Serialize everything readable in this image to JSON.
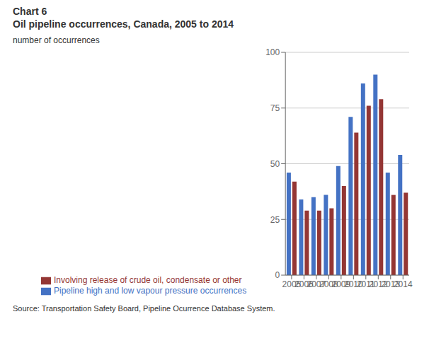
{
  "chart_data": {
    "type": "bar",
    "title": "Chart 6",
    "subtitle": "Oil pipeline occurrences, Canada, 2005 to 2014",
    "ylabel": "number of occurrences",
    "annotations": [
      "Source: Transportation Safety Board, Pipeline Ocurrence Database System."
    ],
    "categories": [
      "2005",
      "2006",
      "2007",
      "2008",
      "2009",
      "2010",
      "2011",
      "2012",
      "2013",
      "2014"
    ],
    "series": [
      {
        "name": "Pipeline high and low vapour pressure occurrences",
        "color": "#4472C4",
        "values": [
          46,
          34,
          35,
          36,
          49,
          71,
          86,
          90,
          46,
          54
        ]
      },
      {
        "name": "Involving release of crude oil, condensate or other",
        "color": "#943634",
        "values": [
          42,
          29,
          29,
          30,
          40,
          64,
          76,
          79,
          36,
          37
        ]
      }
    ],
    "ylim": [
      0,
      100
    ],
    "yticks": [
      0,
      25,
      50,
      75,
      100
    ],
    "grid": true,
    "legend": "bottom"
  }
}
